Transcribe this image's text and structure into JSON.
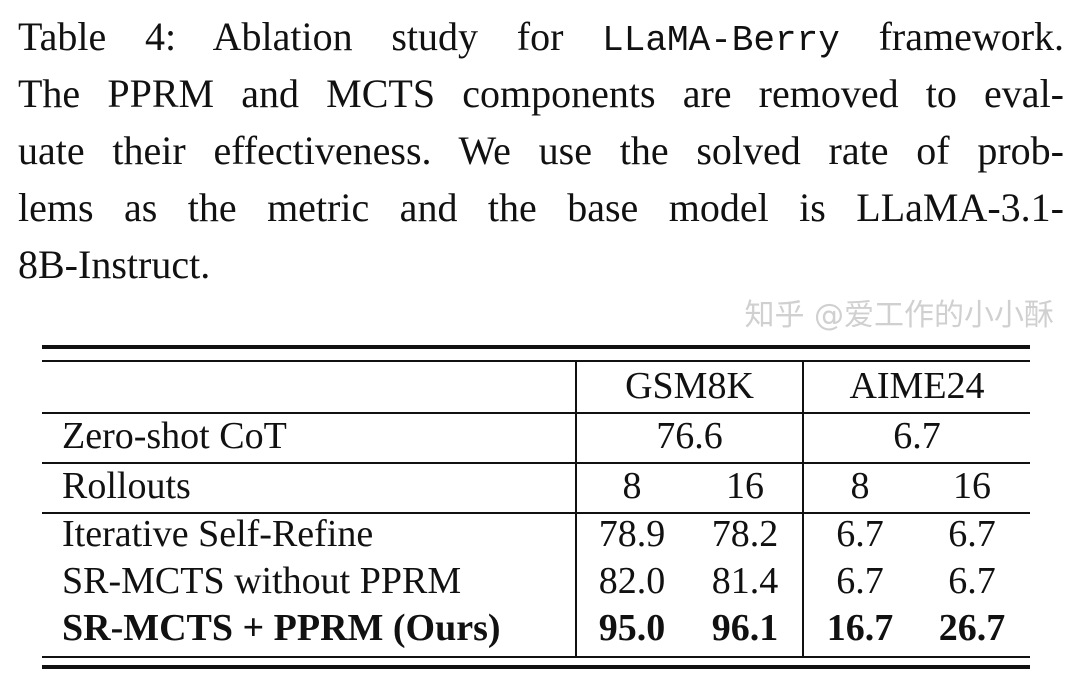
{
  "caption": {
    "line1_pre": "Table 4: Ablation study for",
    "line1_mono": "LLaMA-Berry",
    "line1_post": "framework.",
    "line2": "The PPRM and MCTS components are removed to eval-",
    "line3": "uate their effectiveness. We use the solved rate of prob-",
    "line4": "lems as the metric and the base model is LLaMA-3.1-",
    "line5": "8B-Instruct."
  },
  "table": {
    "headers": [
      "GSM8K",
      "AIME24"
    ],
    "zero_shot": {
      "label": "Zero-shot CoT",
      "gsm8k": "76.6",
      "aime24": "6.7"
    },
    "rollouts": {
      "label": "Rollouts",
      "values": [
        "8",
        "16",
        "8",
        "16"
      ]
    },
    "rows": [
      {
        "label": "Iterative Self-Refine",
        "values": [
          "78.9",
          "78.2",
          "6.7",
          "6.7"
        ]
      },
      {
        "label": "SR-MCTS without PPRM",
        "values": [
          "82.0",
          "81.4",
          "6.7",
          "6.7"
        ]
      },
      {
        "label": "SR-MCTS + PPRM (Ours)",
        "values": [
          "95.0",
          "96.1",
          "16.7",
          "26.7"
        ]
      }
    ]
  },
  "watermark": "知乎 @爱工作的小小酥"
}
